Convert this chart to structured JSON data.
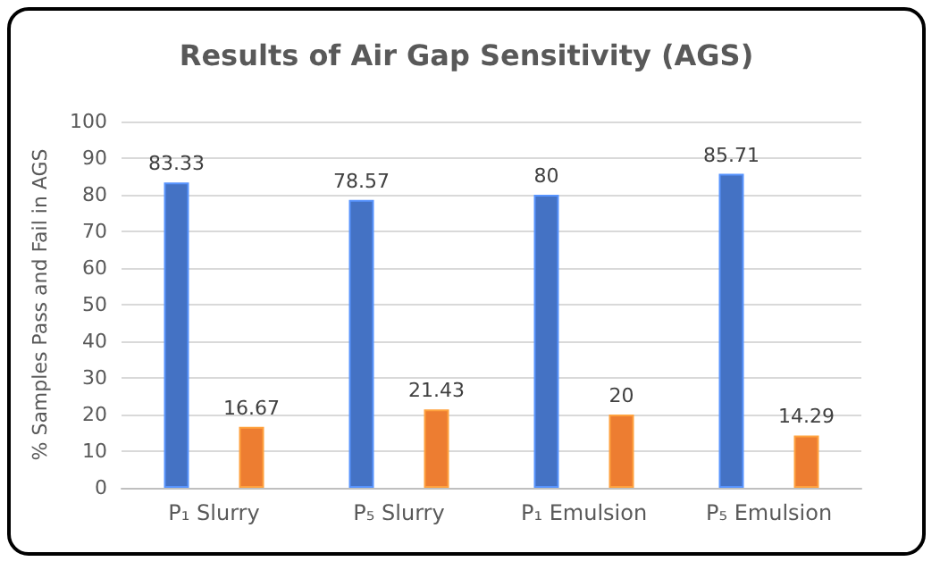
{
  "chart_data": {
    "type": "bar",
    "title": "Results of Air Gap Sensitivity (AGS)",
    "ylabel": "% Samples Pass and Fail in AGS",
    "categories": [
      "P₁ Slurry",
      "P₅ Slurry",
      "P₁ Emulsion",
      "P₅ Emulsion"
    ],
    "series": [
      {
        "color": "#4472c4",
        "values": [
          83.33,
          78.57,
          80,
          85.71
        ]
      },
      {
        "color": "#ed7d31",
        "values": [
          16.67,
          21.43,
          20,
          14.29
        ]
      }
    ],
    "ylim": [
      0,
      100
    ],
    "yticks": [
      0,
      10,
      20,
      30,
      40,
      50,
      60,
      70,
      80,
      90,
      100
    ],
    "grid": "y",
    "data_labels": true
  }
}
